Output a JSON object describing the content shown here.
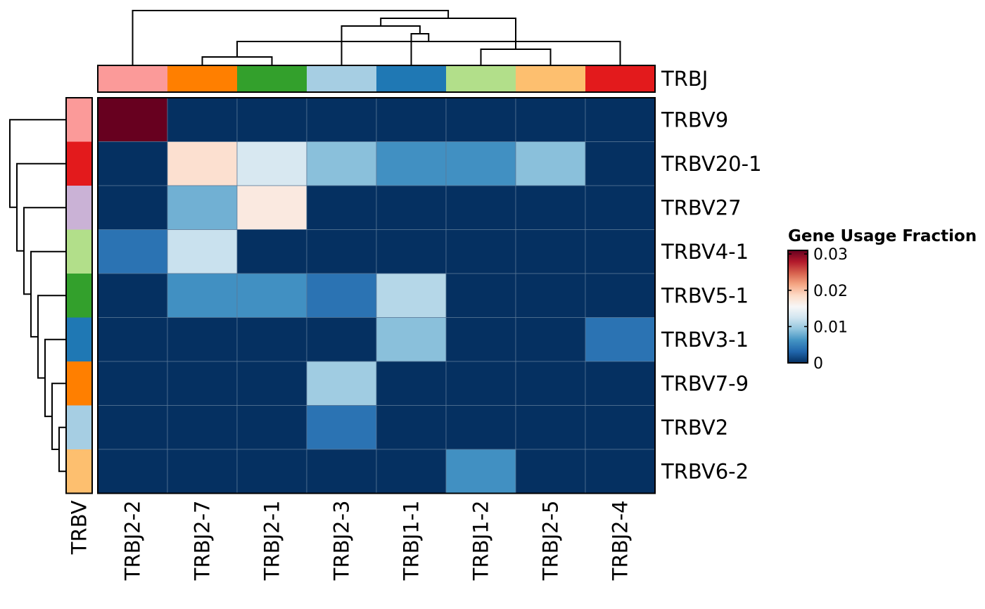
{
  "chart_data": {
    "type": "heatmap",
    "title": "",
    "columns": [
      "TRBJ2-2",
      "TRBJ2-7",
      "TRBJ2-1",
      "TRBJ2-3",
      "TRBJ1-1",
      "TRBJ1-2",
      "TRBJ2-5",
      "TRBJ2-4"
    ],
    "rows": [
      "TRBV9",
      "TRBV20-1",
      "TRBV27",
      "TRBV4-1",
      "TRBV5-1",
      "TRBV3-1",
      "TRBV7-9",
      "TRBV2",
      "TRBV6-2"
    ],
    "values": [
      [
        0.031,
        0,
        0,
        0,
        0,
        0,
        0,
        0
      ],
      [
        0,
        0.018,
        0.013,
        0.009,
        0.006,
        0.006,
        0.009,
        0
      ],
      [
        0,
        0.008,
        0.017,
        0,
        0,
        0,
        0,
        0
      ],
      [
        0.004,
        0.012,
        0,
        0,
        0,
        0,
        0,
        0
      ],
      [
        0,
        0.006,
        0.006,
        0.004,
        0.011,
        0,
        0,
        0
      ],
      [
        0,
        0,
        0,
        0,
        0.009,
        0,
        0,
        0.004
      ],
      [
        0,
        0,
        0,
        0.01,
        0,
        0,
        0,
        0
      ],
      [
        0,
        0,
        0,
        0.004,
        0,
        0,
        0,
        0
      ],
      [
        0,
        0,
        0,
        0,
        0,
        0.006,
        0,
        0
      ]
    ],
    "value_range": [
      0,
      0.031
    ],
    "colormap": [
      "#053061",
      "#2166ac",
      "#4393c3",
      "#92c5de",
      "#d1e5f0",
      "#f7f7f7",
      "#fddbc7",
      "#f4a582",
      "#d6604d",
      "#b2182b",
      "#67001f"
    ],
    "grid_color": "#5a7896",
    "column_annotation": {
      "label": "TRBJ",
      "colors": [
        "#fb9a99",
        "#ff7f00",
        "#33a02c",
        "#a6cee3",
        "#1f78b4",
        "#b2df8a",
        "#fdbf6f",
        "#e31a1c"
      ]
    },
    "row_annotation": {
      "label": "TRBV",
      "colors": [
        "#fb9a99",
        "#e31a1c",
        "#cab2d6",
        "#b2df8a",
        "#33a02c",
        "#1f78b4",
        "#ff7f00",
        "#a6cee3",
        "#fdbf6f"
      ]
    },
    "legend": {
      "title": "Gene Usage Fraction",
      "ticks": [
        0.03,
        0.02,
        0.01,
        0
      ],
      "tick_labels": [
        "0.03",
        "0.02",
        "0.01",
        "0"
      ],
      "position": "right"
    },
    "column_dendrogram": [
      [
        1,
        2
      ],
      [
        5,
        6
      ],
      [
        7,
        8
      ],
      [
        4,
        10
      ],
      [
        3,
        11
      ],
      [
        9,
        12
      ],
      [
        0,
        13
      ]
    ],
    "row_dendrogram": [
      [
        7,
        8
      ],
      [
        6,
        9
      ],
      [
        5,
        10
      ],
      [
        4,
        11
      ],
      [
        3,
        12
      ],
      [
        2,
        13
      ],
      [
        1,
        14
      ],
      [
        0,
        15
      ]
    ]
  }
}
